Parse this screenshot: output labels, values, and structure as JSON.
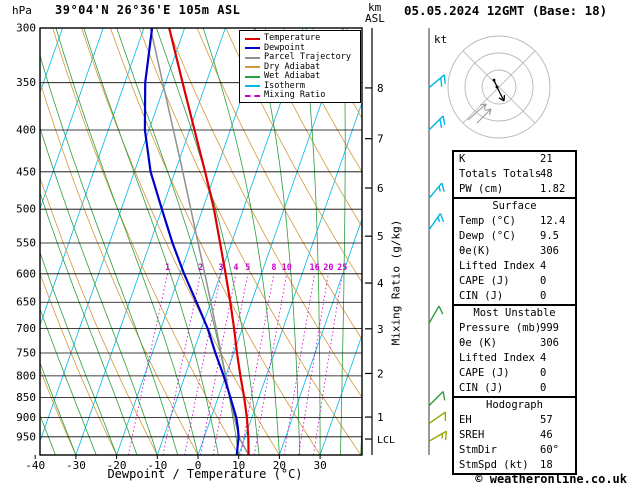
{
  "header": {
    "pressure_unit": "hPa",
    "station": "39°04'N 26°36'E 105m ASL",
    "datetime": "05.05.2024 12GMT (Base: 18)",
    "km_label": "km",
    "asl_label": "ASL"
  },
  "legend": {
    "items": [
      {
        "label": "Temperature",
        "color": "#dd0000",
        "dash": ""
      },
      {
        "label": "Dewpoint",
        "color": "#0000cc",
        "dash": ""
      },
      {
        "label": "Parcel Trajectory",
        "color": "#909090",
        "dash": ""
      },
      {
        "label": "Dry Adiabat",
        "color": "#d29a3c",
        "dash": ""
      },
      {
        "label": "Wet Adiabat",
        "color": "#2e9e3e",
        "dash": ""
      },
      {
        "label": "Isotherm",
        "color": "#00b8e8",
        "dash": ""
      },
      {
        "label": "Mixing Ratio",
        "color": "#cc00cc",
        "dash": "2,2"
      }
    ]
  },
  "axes": {
    "xlabel": "Dewpoint / Temperature (°C)",
    "right_label": "Mixing Ratio (g/kg)",
    "lcl_label": "LCL"
  },
  "hodograph": {
    "unit": "kt"
  },
  "footer": {
    "credit": "© weatheronline.co.uk"
  },
  "stats": {
    "sections": [
      {
        "header": null,
        "rows": [
          [
            "K",
            "21"
          ],
          [
            "Totals Totals",
            "48"
          ],
          [
            "PW (cm)",
            "1.82"
          ]
        ]
      },
      {
        "header": "Surface",
        "rows": [
          [
            "Temp (°C)",
            "12.4"
          ],
          [
            "Dewp (°C)",
            "9.5"
          ],
          [
            "θe(K)",
            "306"
          ],
          [
            "Lifted Index",
            "4"
          ],
          [
            "CAPE (J)",
            "0"
          ],
          [
            "CIN (J)",
            "0"
          ]
        ]
      },
      {
        "header": "Most Unstable",
        "rows": [
          [
            "Pressure (mb)",
            "999"
          ],
          [
            "θe (K)",
            "306"
          ],
          [
            "Lifted Index",
            "4"
          ],
          [
            "CAPE (J)",
            "0"
          ],
          [
            "CIN (J)",
            "0"
          ]
        ]
      },
      {
        "header": "Hodograph",
        "rows": [
          [
            "EH",
            "57"
          ],
          [
            "SREH",
            "46"
          ],
          [
            "StmDir",
            "60°"
          ],
          [
            "StmSpd (kt)",
            "18"
          ]
        ]
      }
    ]
  },
  "chart_data": {
    "type": "skewt-logp",
    "title": "39°04'N 26°36'E 105m ASL",
    "valid": "05.05.2024 12GMT (Base: 18)",
    "pressure_range": [
      300,
      1000
    ],
    "pressure_ticks_hpa": [
      300,
      350,
      400,
      450,
      500,
      550,
      600,
      650,
      700,
      750,
      800,
      850,
      900,
      950
    ],
    "temp_ticks_c": [
      -40,
      -30,
      -20,
      -10,
      0,
      10,
      20,
      30
    ],
    "km_ticks": [
      1,
      2,
      3,
      4,
      5,
      6,
      7,
      8
    ],
    "lcl_pressure_hpa": 956,
    "mixing_ratio_lines_gkg": [
      1,
      2,
      3,
      4,
      5,
      8,
      10,
      16,
      20,
      25
    ],
    "mixing_ratio_label_pressure_hpa": 600,
    "isotherm_step_c": 10,
    "dry_adiabat_step_c": 10,
    "wet_adiabat_step_c": 5,
    "grid": true,
    "colors": {
      "temperature": "#dd0000",
      "dewpoint": "#0000cc",
      "parcel": "#909090",
      "dry_adiabat": "#d29a3c",
      "wet_adiabat": "#2e9e3e",
      "isotherm": "#00b8e8",
      "mixing_ratio": "#cc00cc",
      "grid": "#000000"
    },
    "sounding": {
      "pressure_hpa": [
        999,
        950,
        925,
        900,
        850,
        800,
        750,
        700,
        650,
        600,
        550,
        500,
        450,
        400,
        350,
        300
      ],
      "temperature_c": [
        12.4,
        10.8,
        9.8,
        8.8,
        6.4,
        3.6,
        0.8,
        -2.0,
        -5.2,
        -8.8,
        -12.8,
        -17.2,
        -22.6,
        -28.8,
        -35.8,
        -43.8
      ],
      "dewpoint_c": [
        9.5,
        8.4,
        7.4,
        6.2,
        3.0,
        -0.5,
        -4.5,
        -8.5,
        -13.5,
        -19.0,
        -24.5,
        -30.0,
        -36.0,
        -41.0,
        -45.0,
        -48.0
      ],
      "parcel_pressure_hpa": [
        999,
        956,
        900,
        850,
        800,
        750,
        700,
        650,
        600,
        550,
        500,
        450,
        400,
        350,
        300
      ],
      "parcel_temp_c": [
        12.4,
        8.9,
        5.7,
        2.9,
        0.0,
        -3.1,
        -6.4,
        -10.0,
        -13.9,
        -18.2,
        -22.9,
        -28.1,
        -34.0,
        -40.7,
        -48.4
      ]
    },
    "wind_barbs": [
      {
        "p": 355,
        "dir": 50,
        "kt": 20,
        "color": "#00b8e8"
      },
      {
        "p": 400,
        "dir": 45,
        "kt": 20,
        "color": "#00b8e8"
      },
      {
        "p": 485,
        "dir": 40,
        "kt": 15,
        "color": "#00b8e8"
      },
      {
        "p": 530,
        "dir": 35,
        "kt": 15,
        "color": "#00b8e8"
      },
      {
        "p": 690,
        "dir": 30,
        "kt": 10,
        "color": "#2e9e3e"
      },
      {
        "p": 870,
        "dir": 45,
        "kt": 10,
        "color": "#2e9e3e"
      },
      {
        "p": 915,
        "dir": 55,
        "kt": 10,
        "color": "#9aa800"
      },
      {
        "p": 962,
        "dir": 60,
        "kt": 15,
        "color": "#9aa800"
      }
    ],
    "hodograph": {
      "rings_kt": [
        10,
        20,
        30
      ],
      "storm_dir_deg": 60,
      "storm_speed_kt": 18
    }
  }
}
